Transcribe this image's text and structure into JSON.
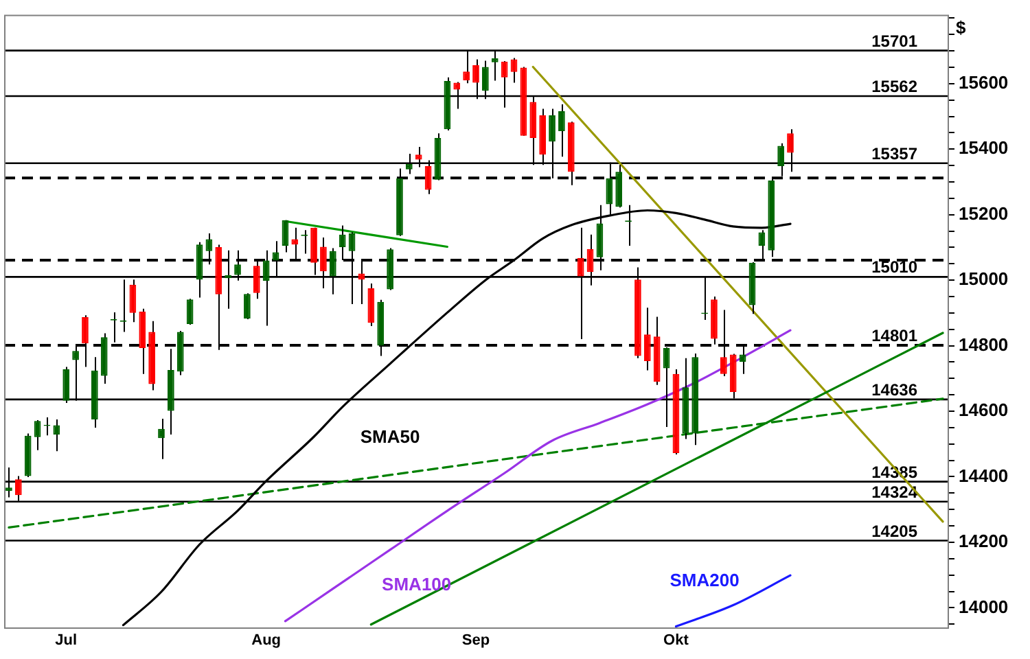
{
  "chart_data": {
    "type": "candlestick",
    "ylabel": "$",
    "categories": [
      null,
      null,
      null,
      null,
      null,
      null,
      "Jul",
      null,
      null,
      null,
      null,
      null,
      null,
      null,
      null,
      null,
      null,
      null,
      null,
      null,
      null,
      null,
      null,
      null,
      null,
      null,
      null,
      "Aug",
      null,
      null,
      null,
      null,
      null,
      null,
      null,
      null,
      null,
      null,
      null,
      null,
      null,
      null,
      null,
      null,
      null,
      null,
      null,
      null,
      null,
      "Sep",
      null,
      null,
      null,
      null,
      null,
      null,
      null,
      null,
      null,
      null,
      null,
      null,
      null,
      null,
      null,
      null,
      null,
      null,
      null,
      null,
      "Okt",
      null,
      null,
      null,
      null,
      null,
      null,
      null,
      null,
      null,
      null,
      null,
      null,
      null,
      null,
      null,
      null,
      null,
      null,
      null,
      null,
      null,
      null,
      null,
      null,
      null,
      null,
      null,
      null
    ],
    "ohlc": [
      [
        14357,
        14428,
        14337,
        14367
      ],
      [
        14392,
        14402,
        14326,
        14344
      ],
      [
        14402,
        14532,
        14399,
        14525
      ],
      [
        14521,
        14573,
        14481,
        14570
      ],
      [
        14555,
        14581,
        14526,
        14558
      ],
      [
        14529,
        14575,
        14478,
        14557
      ],
      [
        14632,
        14735,
        14625,
        14728
      ],
      [
        14756,
        14803,
        14632,
        14784
      ],
      [
        14887,
        14893,
        14735,
        14807
      ],
      [
        14575,
        14765,
        14550,
        14724
      ],
      [
        14708,
        14838,
        14684,
        14826
      ],
      [
        14877,
        14902,
        14810,
        14881
      ],
      [
        14873,
        15002,
        14842,
        14877
      ],
      [
        14986,
        15002,
        14872,
        14900
      ],
      [
        14904,
        14913,
        14714,
        14793
      ],
      [
        14842,
        14875,
        14664,
        14683
      ],
      [
        14518,
        14577,
        14454,
        14546
      ],
      [
        14601,
        14790,
        14529,
        14726
      ],
      [
        14721,
        14845,
        14710,
        14842
      ],
      [
        14866,
        14943,
        14864,
        14941
      ],
      [
        15002,
        15116,
        14947,
        15109
      ],
      [
        15089,
        15143,
        15048,
        15125
      ],
      [
        15101,
        15108,
        14787,
        14957
      ],
      [
        15006,
        15091,
        14913,
        15015
      ],
      [
        15016,
        15091,
        14999,
        15048
      ],
      [
        14883,
        14960,
        14881,
        14958
      ],
      [
        15044,
        15064,
        14943,
        14961
      ],
      [
        14998,
        15091,
        14861,
        15060
      ],
      [
        15060,
        15119,
        15013,
        15085
      ],
      [
        15105,
        15183,
        15085,
        15183
      ],
      [
        15125,
        15160,
        15064,
        15109
      ],
      [
        15135,
        15153,
        15081,
        15139
      ],
      [
        15160,
        15160,
        15016,
        15053
      ],
      [
        15102,
        15130,
        14975,
        15027
      ],
      [
        15012,
        15098,
        14957,
        15089
      ],
      [
        15101,
        15167,
        15061,
        15139
      ],
      [
        15089,
        15146,
        14927,
        15143
      ],
      [
        15020,
        15064,
        14927,
        15002
      ],
      [
        14975,
        14990,
        14860,
        14870
      ],
      [
        14800,
        14940,
        14769,
        14934
      ],
      [
        14972,
        15098,
        14970,
        15094
      ],
      [
        15137,
        15341,
        15135,
        15311
      ],
      [
        15338,
        15386,
        15324,
        15355
      ],
      [
        15383,
        15407,
        15345,
        15368
      ],
      [
        15348,
        15366,
        15263,
        15276
      ],
      [
        15307,
        15448,
        15305,
        15434
      ],
      [
        15461,
        15619,
        15457,
        15608
      ],
      [
        15603,
        15605,
        15523,
        15582
      ],
      [
        15637,
        15702,
        15601,
        15610
      ],
      [
        15656,
        15674,
        15553,
        15603
      ],
      [
        15578,
        15670,
        15553,
        15651
      ],
      [
        15665,
        15702,
        15609,
        15677
      ],
      [
        15667,
        15669,
        15527,
        15619
      ],
      [
        15674,
        15678,
        15603,
        15636
      ],
      [
        15649,
        15651,
        15441,
        15441
      ],
      [
        15544,
        15560,
        15352,
        15434
      ],
      [
        15503,
        15523,
        15352,
        15383
      ],
      [
        15423,
        15523,
        15311,
        15503
      ],
      [
        15455,
        15537,
        15377,
        15516
      ],
      [
        15482,
        15484,
        15290,
        15331
      ],
      [
        15068,
        15160,
        14820,
        15012
      ],
      [
        15095,
        15139,
        14984,
        15025
      ],
      [
        15070,
        15229,
        15030,
        15173
      ],
      [
        15232,
        15359,
        15198,
        15311
      ],
      [
        15224,
        15352,
        15222,
        15331
      ],
      [
        15178,
        15229,
        15105,
        15182
      ],
      [
        15002,
        15039,
        14762,
        14769
      ],
      [
        14834,
        14916,
        14725,
        14753
      ],
      [
        14828,
        14888,
        14680,
        14690
      ],
      [
        14731,
        14795,
        14552,
        14793
      ],
      [
        14714,
        14728,
        14468,
        14472
      ],
      [
        14532,
        14762,
        14515,
        14673
      ],
      [
        14532,
        14776,
        14497,
        14765
      ],
      [
        14897,
        15009,
        14879,
        14901
      ],
      [
        14941,
        14950,
        14804,
        14821
      ],
      [
        14765,
        14909,
        14707,
        14714
      ],
      [
        14773,
        14775,
        14639,
        14659
      ],
      [
        14751,
        14804,
        14714,
        14773
      ],
      [
        14924,
        15055,
        14897,
        15053
      ],
      [
        15105,
        15153,
        15061,
        15146
      ],
      [
        15091,
        15313,
        15071,
        15304
      ],
      [
        15348,
        15418,
        15317,
        15410
      ],
      [
        15448,
        15461,
        15331,
        15389
      ],
      null,
      null,
      null,
      null,
      null,
      null,
      null,
      null,
      null,
      null,
      null,
      null,
      null,
      null,
      null,
      null
    ],
    "colors": [
      "#006400",
      "#ff0000",
      "#006400",
      "#006400",
      "#006400",
      "#006400",
      "#006400",
      "#006400",
      "#ff0000",
      "#006400",
      "#006400",
      "#006400",
      "#006400",
      "#ff0000",
      "#ff0000",
      "#ff0000",
      "#006400",
      "#006400",
      "#006400",
      "#006400",
      "#006400",
      "#006400",
      "#ff0000",
      "#006400",
      "#006400",
      "#006400",
      "#ff0000",
      "#006400",
      "#006400",
      "#006400",
      "#ff0000",
      "#006400",
      "#ff0000",
      "#ff0000",
      "#006400",
      "#006400",
      "#006400",
      "#ff0000",
      "#ff0000",
      "#006400",
      "#006400",
      "#006400",
      "#006400",
      "#ff0000",
      "#ff0000",
      "#006400",
      "#006400",
      "#ff0000",
      "#ff0000",
      "#ff0000",
      "#006400",
      "#006400",
      "#ff0000",
      "#ff0000",
      "#ff0000",
      "#ff0000",
      "#ff0000",
      "#006400",
      "#006400",
      "#ff0000",
      "#ff0000",
      "#ff0000",
      "#006400",
      "#006400",
      "#006400",
      "#006400",
      "#ff0000",
      "#ff0000",
      "#ff0000",
      "#006400",
      "#ff0000",
      "#006400",
      "#006400",
      "#006400",
      "#ff0000",
      "#ff0000",
      "#ff0000",
      "#006400",
      "#006400",
      "#006400",
      "#006400",
      "#006400",
      "#ff0000",
      null,
      null,
      null,
      null,
      null,
      null,
      null,
      null,
      null,
      null,
      null,
      null,
      null,
      null,
      null,
      null
    ],
    "series": [
      {
        "type": "line",
        "name": "SMA50",
        "color": "#000000",
        "values": [
          null,
          null,
          null,
          null,
          null,
          null,
          null,
          null,
          null,
          null,
          null,
          null,
          13947,
          null,
          null,
          null,
          14049,
          null,
          null,
          null,
          14193,
          null,
          null,
          null,
          14296,
          null,
          null,
          14387,
          null,
          null,
          null,
          null,
          14522,
          null,
          null,
          14613,
          null,
          null,
          null,
          null,
          14745,
          null,
          null,
          null,
          null,
          null,
          14901,
          null,
          null,
          null,
          15000,
          null,
          null,
          15061,
          null,
          null,
          15127,
          null,
          null,
          15168,
          null,
          null,
          null,
          15197,
          null,
          null,
          null,
          15213,
          null,
          null,
          15205,
          null,
          null,
          15185,
          null,
          null,
          15164,
          null,
          null,
          15160,
          null,
          null,
          15172,
          null,
          null,
          null,
          null,
          null,
          null,
          null,
          null,
          null,
          null,
          null,
          null,
          null,
          null,
          null,
          null
        ]
      },
      {
        "type": "line",
        "name": "SMA100",
        "color": "#9933e6",
        "values": [
          null,
          null,
          null,
          null,
          null,
          null,
          null,
          null,
          null,
          null,
          null,
          null,
          null,
          null,
          null,
          null,
          null,
          null,
          null,
          null,
          null,
          null,
          null,
          null,
          null,
          null,
          null,
          null,
          null,
          13959,
          null,
          null,
          null,
          null,
          14058,
          null,
          null,
          null,
          null,
          null,
          14177,
          null,
          null,
          null,
          null,
          null,
          14296,
          null,
          null,
          null,
          null,
          null,
          14411,
          null,
          null,
          null,
          null,
          14510,
          null,
          null,
          null,
          null,
          14564,
          null,
          null,
          null,
          null,
          14621,
          null,
          null,
          null,
          null,
          14687,
          null,
          null,
          null,
          null,
          14765,
          null,
          null,
          null,
          null,
          14847,
          null,
          null,
          null,
          null,
          null,
          null,
          null,
          null,
          null,
          null,
          null,
          null,
          null,
          null,
          null,
          null
        ]
      },
      {
        "type": "line",
        "name": "SMA200",
        "color": "#1a1aff",
        "values": [
          null,
          null,
          null,
          null,
          null,
          null,
          null,
          null,
          null,
          null,
          null,
          null,
          null,
          null,
          null,
          null,
          null,
          null,
          null,
          null,
          null,
          null,
          null,
          null,
          null,
          null,
          null,
          null,
          null,
          null,
          null,
          null,
          null,
          null,
          null,
          null,
          null,
          null,
          null,
          null,
          null,
          null,
          null,
          null,
          null,
          null,
          null,
          null,
          null,
          null,
          null,
          null,
          null,
          null,
          null,
          null,
          null,
          null,
          null,
          null,
          null,
          null,
          null,
          null,
          null,
          null,
          null,
          null,
          null,
          null,
          13943,
          null,
          null,
          null,
          null,
          null,
          14008,
          null,
          null,
          null,
          null,
          null,
          14099,
          null,
          null,
          null,
          null,
          null,
          null,
          null,
          null,
          null,
          null,
          null,
          null,
          null,
          null,
          null,
          null
        ]
      },
      {
        "type": "line",
        "color": "#008000",
        "line_style": "dashed",
        "values": [
          14245,
          null,
          null,
          null,
          null,
          null,
          null,
          null,
          null,
          null,
          null,
          null,
          null,
          null,
          null,
          null,
          null,
          null,
          null,
          null,
          null,
          null,
          null,
          null,
          null,
          null,
          null,
          null,
          null,
          null,
          null,
          null,
          null,
          null,
          null,
          null,
          null,
          null,
          null,
          null,
          null,
          null,
          null,
          null,
          null,
          null,
          null,
          null,
          null,
          null,
          null,
          null,
          null,
          null,
          null,
          null,
          null,
          null,
          null,
          null,
          null,
          null,
          null,
          null,
          null,
          null,
          null,
          null,
          null,
          null,
          null,
          null,
          null,
          null,
          null,
          null,
          null,
          null,
          null,
          null,
          null,
          null,
          null,
          null,
          null,
          null,
          null,
          null,
          null,
          null,
          null,
          null,
          null,
          null,
          null,
          null,
          null,
          null,
          14638
        ]
      },
      {
        "type": "line",
        "color": "#008000",
        "values": [
          null,
          null,
          null,
          null,
          null,
          null,
          null,
          null,
          null,
          null,
          null,
          null,
          null,
          null,
          null,
          null,
          null,
          null,
          null,
          null,
          null,
          null,
          null,
          null,
          null,
          null,
          null,
          null,
          null,
          null,
          null,
          null,
          null,
          null,
          null,
          null,
          null,
          null,
          13949,
          null,
          null,
          null,
          null,
          null,
          null,
          null,
          null,
          null,
          null,
          null,
          null,
          null,
          null,
          null,
          null,
          null,
          null,
          null,
          null,
          null,
          null,
          null,
          null,
          null,
          null,
          null,
          null,
          null,
          null,
          null,
          null,
          null,
          null,
          null,
          null,
          null,
          null,
          null,
          null,
          null,
          null,
          null,
          null,
          null,
          null,
          null,
          null,
          null,
          null,
          null,
          null,
          null,
          null,
          null,
          null,
          null,
          null,
          null,
          14839
        ]
      },
      {
        "type": "line",
        "color": "#999900",
        "values": [
          null,
          null,
          null,
          null,
          null,
          null,
          null,
          null,
          null,
          null,
          null,
          null,
          null,
          null,
          null,
          null,
          null,
          null,
          null,
          null,
          null,
          null,
          null,
          null,
          null,
          null,
          null,
          null,
          null,
          null,
          null,
          null,
          null,
          null,
          null,
          null,
          null,
          null,
          null,
          null,
          null,
          null,
          null,
          null,
          null,
          null,
          null,
          null,
          null,
          null,
          null,
          null,
          null,
          null,
          null,
          15651,
          null,
          null,
          null,
          null,
          null,
          null,
          null,
          null,
          null,
          null,
          null,
          null,
          null,
          null,
          null,
          null,
          null,
          null,
          null,
          null,
          null,
          null,
          null,
          null,
          null,
          null,
          null,
          null,
          null,
          null,
          null,
          null,
          null,
          null,
          null,
          null,
          null,
          null,
          null,
          null,
          null,
          null,
          14263
        ]
      },
      {
        "type": "line",
        "color": "#009900",
        "values": [
          null,
          null,
          null,
          null,
          null,
          null,
          null,
          null,
          null,
          null,
          null,
          null,
          null,
          null,
          null,
          null,
          null,
          null,
          null,
          null,
          null,
          null,
          null,
          null,
          null,
          null,
          null,
          null,
          null,
          15180,
          null,
          null,
          null,
          null,
          null,
          null,
          null,
          null,
          null,
          null,
          null,
          null,
          null,
          null,
          null,
          null,
          15102,
          null,
          null,
          null,
          null,
          null,
          null,
          null,
          null,
          null,
          null,
          null,
          null,
          null,
          null,
          null,
          null,
          null,
          null,
          null,
          null,
          null,
          null,
          null,
          null,
          null,
          null,
          null,
          null,
          null,
          null,
          null,
          null,
          null,
          null,
          null,
          null,
          null,
          null,
          null,
          null,
          null,
          null,
          null,
          null,
          null,
          null,
          null,
          null,
          null,
          null,
          null,
          null
        ]
      }
    ],
    "ref_lines": [
      {
        "axis": "y",
        "value": 15701,
        "label": "15701",
        "color": "#000000",
        "line_style": "solid"
      },
      {
        "axis": "y",
        "value": 15562,
        "label": "15562",
        "color": "#000000",
        "line_style": "solid"
      },
      {
        "axis": "y",
        "value": 15357,
        "label": "15357",
        "color": "#000000",
        "line_style": "solid"
      },
      {
        "axis": "y",
        "value": 15312,
        "color": "#000000",
        "line_style": "dashed"
      },
      {
        "axis": "y",
        "value": 15061,
        "color": "#000000",
        "line_style": "dashed"
      },
      {
        "axis": "y",
        "value": 15010,
        "label": "15010",
        "color": "#000000",
        "line_style": "solid"
      },
      {
        "axis": "y",
        "value": 14801,
        "label": "14801",
        "color": "#000000",
        "line_style": "dashed"
      },
      {
        "axis": "y",
        "value": 14636,
        "label": "14636",
        "color": "#000000",
        "line_style": "solid"
      },
      {
        "axis": "y",
        "value": 14385,
        "label": "14385",
        "color": "#000000",
        "line_style": "solid"
      },
      {
        "axis": "y",
        "value": 14324,
        "label": "14324",
        "color": "#000000",
        "line_style": "solid"
      },
      {
        "axis": "y",
        "value": 14205,
        "label": "14205",
        "color": "#000000",
        "line_style": "solid"
      }
    ],
    "ylim": [
      13940,
      15810
    ],
    "yticks": [
      {
        "value": 13950,
        "label": null
      },
      14000,
      {
        "value": 14050,
        "label": null
      },
      {
        "value": 14100,
        "label": null
      },
      {
        "value": 14150,
        "label": null
      },
      14200,
      {
        "value": 14250,
        "label": null
      },
      {
        "value": 14300,
        "label": null
      },
      {
        "value": 14350,
        "label": null
      },
      14400,
      {
        "value": 14450,
        "label": null
      },
      {
        "value": 14500,
        "label": null
      },
      {
        "value": 14550,
        "label": null
      },
      14600,
      {
        "value": 14650,
        "label": null
      },
      {
        "value": 14700,
        "label": null
      },
      {
        "value": 14750,
        "label": null
      },
      14800,
      {
        "value": 14850,
        "label": null
      },
      {
        "value": 14900,
        "label": null
      },
      {
        "value": 14950,
        "label": null
      },
      15000,
      {
        "value": 15050,
        "label": null
      },
      {
        "value": 15100,
        "label": null
      },
      {
        "value": 15150,
        "label": null
      },
      15200,
      {
        "value": 15250,
        "label": null
      },
      {
        "value": 15300,
        "label": null
      },
      {
        "value": 15350,
        "label": null
      },
      15400,
      {
        "value": 15450,
        "label": null
      },
      {
        "value": 15500,
        "label": null
      },
      {
        "value": 15550,
        "label": null
      },
      15600,
      {
        "value": 15650,
        "label": null
      },
      {
        "value": 15700,
        "label": null
      },
      {
        "value": 15750,
        "label": null
      },
      {
        "value": 15800,
        "label": null
      }
    ],
    "marker": "none"
  }
}
